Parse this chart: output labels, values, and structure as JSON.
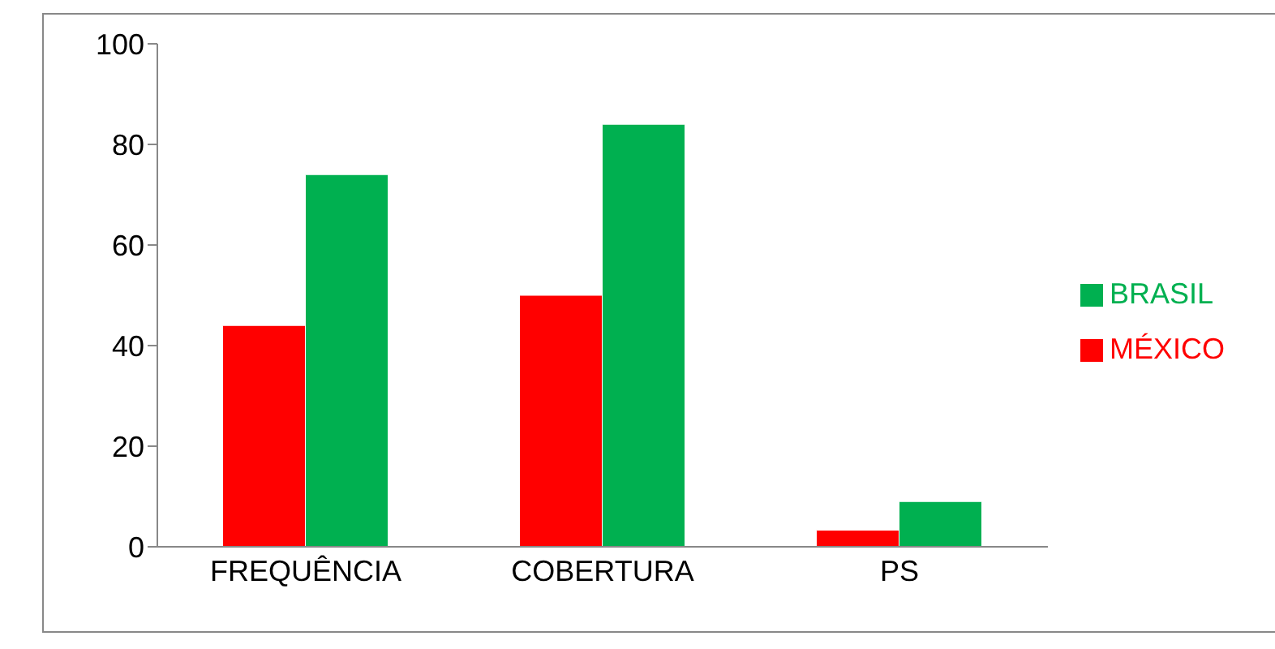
{
  "chart_data": {
    "type": "bar",
    "categories": [
      "FREQUÊNCIA",
      "COBERTURA",
      "PS"
    ],
    "series": [
      {
        "name": "MÉXICO",
        "color": "#ff0000",
        "values": [
          44,
          50,
          3.3
        ]
      },
      {
        "name": "BRASIL",
        "color": "#00b050",
        "values": [
          74,
          84,
          9
        ]
      }
    ],
    "ylim": [
      0,
      100
    ],
    "yticks": [
      0,
      20,
      40,
      60,
      80,
      100
    ],
    "grid": false,
    "legend": "right"
  }
}
